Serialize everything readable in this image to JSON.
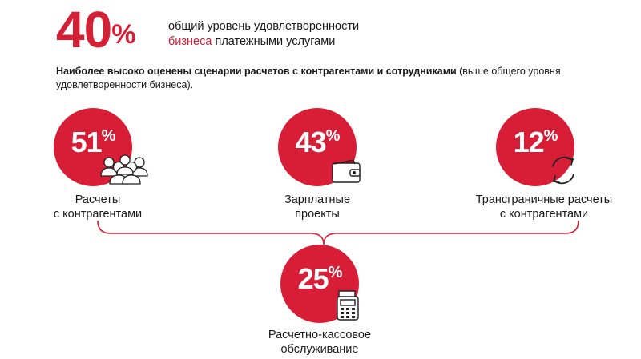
{
  "header": {
    "value": "40",
    "unit": "%",
    "line1": "общий уровень удовлетворенности",
    "line2_accent": "бизнеса",
    "line2_rest": " платежными услугами"
  },
  "intro": {
    "bold": "Наиболее высоко оценены сценарии расчетов с контрагентами и сотрудниками",
    "rest": " (выше общего уровня удовлетворенности бизнеса)."
  },
  "chart_data": {
    "type": "infographic",
    "title": "",
    "items": [
      {
        "value": 51,
        "unit": "%",
        "label_line1": "Расчеты",
        "label_line2": "с контрагентами",
        "icon": "people-group-icon"
      },
      {
        "value": 43,
        "unit": "%",
        "label_line1": "Зарплатные",
        "label_line2": "проекты",
        "icon": "wallet-icon"
      },
      {
        "value": 12,
        "unit": "%",
        "label_line1": "Трансграничные расчеты",
        "label_line2": "с контрагентами",
        "icon": "exchange-arrows-icon"
      },
      {
        "value": 25,
        "unit": "%",
        "label_line1": "Расчетно-кассовое",
        "label_line2": "обслуживание",
        "icon": "pos-terminal-icon"
      }
    ]
  },
  "colors": {
    "accent": "#d71e36",
    "text": "#1a1a1a",
    "brace": "#d71e36"
  }
}
